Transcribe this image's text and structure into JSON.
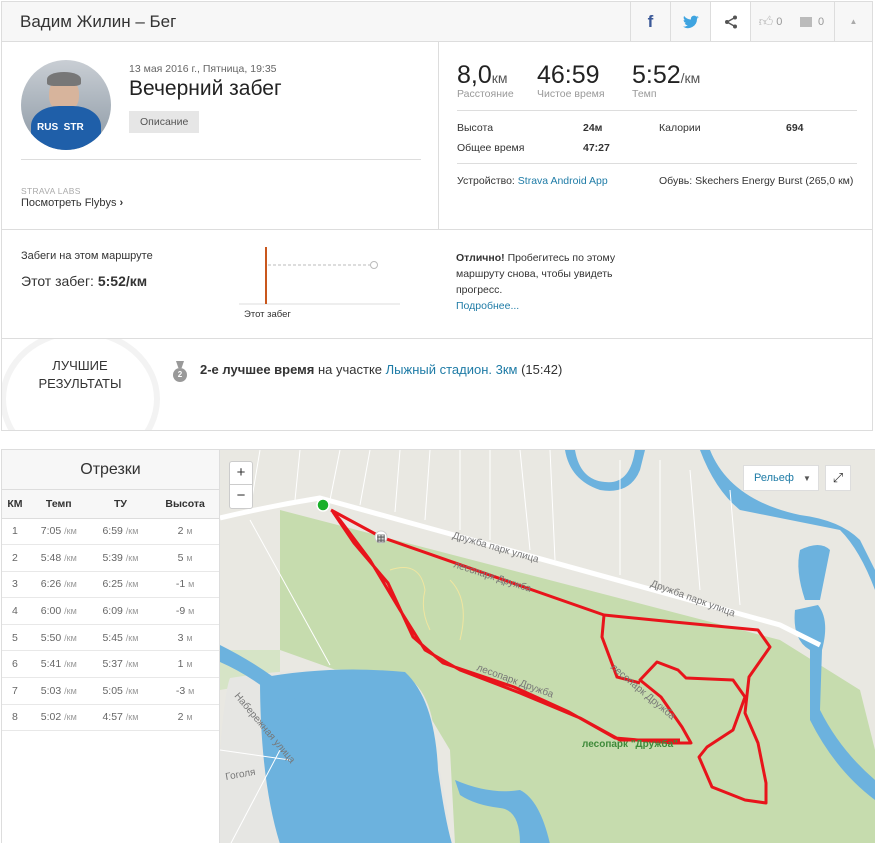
{
  "header": {
    "title": "Вадим Жилин – Бег",
    "kudos_count": "0",
    "comments_count": "0",
    "icons": [
      "facebook-icon",
      "twitter-icon",
      "share-icon",
      "thumbs-up-icon",
      "comment-icon",
      "chevron-up-icon"
    ]
  },
  "activity": {
    "date": "13 мая 2016 г., Пятница, 19:35",
    "name": "Вечерний забег",
    "description_button": "Описание",
    "labs_label": "STRAVA LABS",
    "flyby_link": "Посмотреть Flybys",
    "flyby_chevron": "›"
  },
  "stats": {
    "distance": {
      "value": "8,0",
      "unit": "км",
      "label": "Расстояние"
    },
    "moving_time": {
      "value": "46:59",
      "label": "Чистое время"
    },
    "pace": {
      "value": "5:52",
      "unit": "/км",
      "label": "Темп"
    },
    "elevation_label": "Высота",
    "elevation_value": "24м",
    "calories_label": "Калории",
    "calories_value": "694",
    "elapsed_label": "Общее время",
    "elapsed_value": "47:27",
    "device_label": "Устройство:",
    "device_value": "Strava Android App",
    "shoes": "Обувь: Skechers Energy Burst (265,0 км)"
  },
  "route": {
    "title": "Забеги на этом маршруте",
    "this_run_label": "Этот забег:",
    "this_run_value": "5:52/км",
    "chart_label": "Этот забег",
    "message_bold": "Отлично!",
    "message": " Пробегитесь по этому маршруту снова, чтобы увидеть прогресс.",
    "more_link": "Подробнее..."
  },
  "best": {
    "title_line1": "ЛУЧШИЕ",
    "title_line2": "РЕЗУЛЬТАТЫ",
    "medal": "2",
    "rank": "2-е лучшее время",
    "middle": " на участке ",
    "segment": "Лыжный стадион. 3км",
    "time": " (15:42)"
  },
  "splits": {
    "title": "Отрезки",
    "columns": [
      "КМ",
      "Темп",
      "ТУ",
      "Высота"
    ],
    "pace_unit": "/км",
    "elev_unit": "м",
    "rows": [
      [
        "1",
        "7:05",
        "6:59",
        "2"
      ],
      [
        "2",
        "5:48",
        "5:39",
        "5"
      ],
      [
        "3",
        "6:26",
        "6:25",
        "-1"
      ],
      [
        "4",
        "6:00",
        "6:09",
        "-9"
      ],
      [
        "5",
        "5:50",
        "5:45",
        "3"
      ],
      [
        "6",
        "5:41",
        "5:37",
        "1"
      ],
      [
        "7",
        "5:03",
        "5:05",
        "-3"
      ],
      [
        "8",
        "5:02",
        "4:57",
        "2"
      ]
    ]
  },
  "map": {
    "zoom_in": "+",
    "zoom_out": "−",
    "layer_select": "Рельеф",
    "labels": [
      "Дружба парк улица",
      "Дружба парк улица",
      "лесопарк Дружба",
      "лесопарк Дружба",
      "лесопарк Дружба",
      "лесопарк \"Дружба\"",
      "Набережная улица",
      "Гоголя"
    ],
    "route_color": "#e8141b",
    "start_color": "#1ab02a"
  }
}
